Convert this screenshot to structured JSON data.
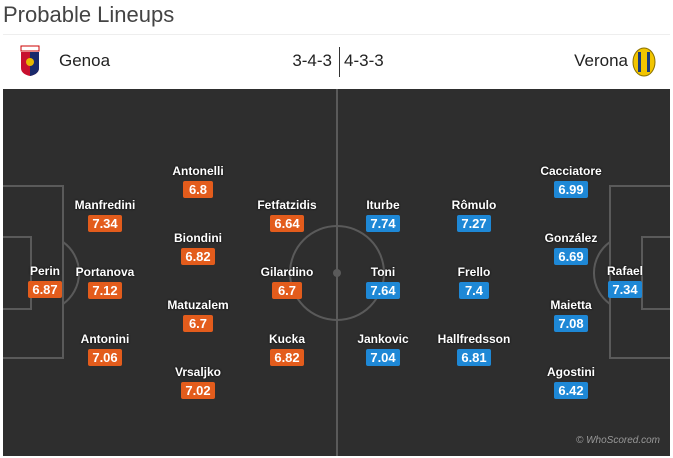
{
  "title": "Probable Lineups",
  "home": {
    "name": "Genoa",
    "formation": "3-4-3",
    "color": "#e35c1c",
    "players": [
      {
        "name": "Perin",
        "rating": "6.87"
      },
      {
        "name": "Manfredini",
        "rating": "7.34"
      },
      {
        "name": "Portanova",
        "rating": "7.12"
      },
      {
        "name": "Antonini",
        "rating": "7.06"
      },
      {
        "name": "Antonelli",
        "rating": "6.8"
      },
      {
        "name": "Biondini",
        "rating": "6.82"
      },
      {
        "name": "Matuzalem",
        "rating": "6.7"
      },
      {
        "name": "Vrsaljko",
        "rating": "7.02"
      },
      {
        "name": "Fetfatzidis",
        "rating": "6.64"
      },
      {
        "name": "Gilardino",
        "rating": "6.7"
      },
      {
        "name": "Kucka",
        "rating": "6.82"
      }
    ]
  },
  "away": {
    "name": "Verona",
    "formation": "4-3-3",
    "color": "#1e88d6",
    "players": [
      {
        "name": "Iturbe",
        "rating": "7.74"
      },
      {
        "name": "Toni",
        "rating": "7.64"
      },
      {
        "name": "Jankovic",
        "rating": "7.04"
      },
      {
        "name": "Rômulo",
        "rating": "7.27"
      },
      {
        "name": "Frello",
        "rating": "7.4"
      },
      {
        "name": "Hallfredsson",
        "rating": "6.81"
      },
      {
        "name": "Cacciatore",
        "rating": "6.99"
      },
      {
        "name": "González",
        "rating": "6.69"
      },
      {
        "name": "Maietta",
        "rating": "7.08"
      },
      {
        "name": "Agostini",
        "rating": "6.42"
      },
      {
        "name": "Rafael",
        "rating": "7.34"
      }
    ]
  },
  "watermark": "© WhoScored.com"
}
